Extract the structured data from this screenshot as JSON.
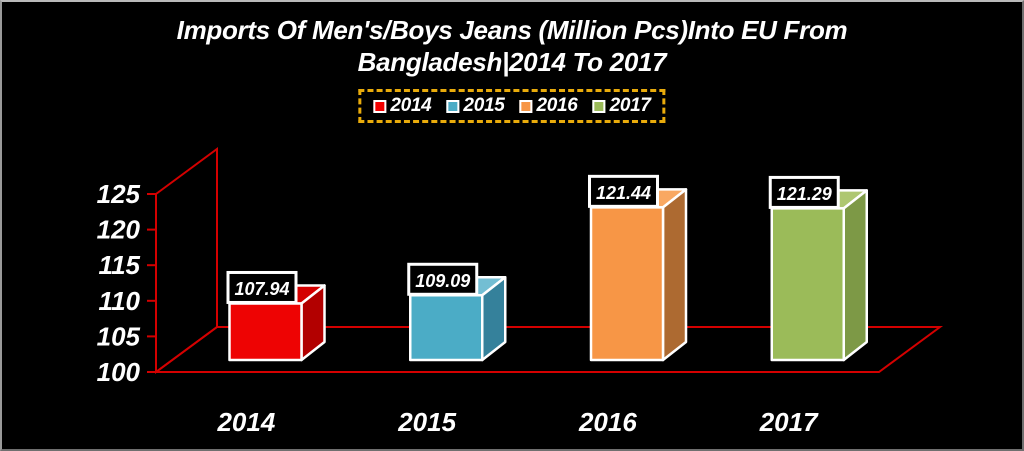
{
  "window": {
    "background_color": "#000000",
    "border_color": "#6f6f6f"
  },
  "title": {
    "line1": "Imports Of Men's/Boys Jeans (Million Pcs)Into EU From",
    "line2": "Bangladesh|2014 To 2017",
    "color": "#ffffff"
  },
  "legend": {
    "position": "top-center",
    "border_color": "#E9AB0B",
    "border_style": "dashed",
    "entries": [
      {
        "label": "2014",
        "color": "#F40000"
      },
      {
        "label": "2015",
        "color": "#4BACC6"
      },
      {
        "label": "2016",
        "color": "#F79646"
      },
      {
        "label": "2017",
        "color": "#9BBB59"
      }
    ]
  },
  "chart_data": {
    "type": "bar",
    "style": "3d-column",
    "title": "Imports Of Men's/Boys Jeans (Million Pcs)Into EU From Bangladesh|2014 To 2017",
    "categories": [
      "2014",
      "2015",
      "2016",
      "2017"
    ],
    "values": [
      107.94,
      109.09,
      121.44,
      121.29
    ],
    "value_labels": [
      "107.94",
      "109.09",
      "121.44",
      "121.29"
    ],
    "yticks": [
      100,
      105,
      110,
      115,
      120,
      125
    ],
    "ylim": [
      100,
      125
    ],
    "xlabel": "",
    "ylabel": "",
    "grid": false,
    "axis_color": "#D40000",
    "text_color": "#ffffff",
    "value_box": {
      "fill": "#000000",
      "border": "#ffffff"
    },
    "bar_styles": [
      {
        "front": "#EE0303",
        "top": "#D40000",
        "side": "#B20000"
      },
      {
        "front": "#4BACC6",
        "top": "#73BED3",
        "side": "#35819B"
      },
      {
        "front": "#F79646",
        "top": "#F9A862",
        "side": "#AD6A31"
      },
      {
        "front": "#9BBB59",
        "top": "#AEC771",
        "side": "#7D9946"
      }
    ]
  }
}
